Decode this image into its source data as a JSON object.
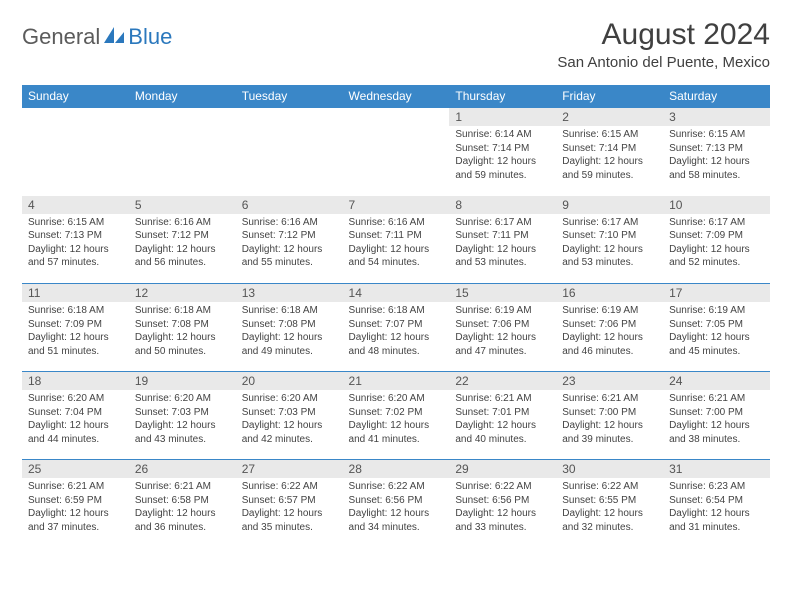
{
  "logo": {
    "part1": "General",
    "part2": "Blue"
  },
  "title": "August 2024",
  "location": "San Antonio del Puente, Mexico",
  "colors": {
    "header_bg": "#3a87c8",
    "header_fg": "#ffffff",
    "daynum_bg": "#e9e9e9",
    "divider": "#3a87c8",
    "logo_gray": "#5b5b5b",
    "logo_blue": "#2b78bd"
  },
  "day_headers": [
    "Sunday",
    "Monday",
    "Tuesday",
    "Wednesday",
    "Thursday",
    "Friday",
    "Saturday"
  ],
  "weeks": [
    [
      {
        "day": "",
        "sunrise": "",
        "sunset": "",
        "daylight": ""
      },
      {
        "day": "",
        "sunrise": "",
        "sunset": "",
        "daylight": ""
      },
      {
        "day": "",
        "sunrise": "",
        "sunset": "",
        "daylight": ""
      },
      {
        "day": "",
        "sunrise": "",
        "sunset": "",
        "daylight": ""
      },
      {
        "day": "1",
        "sunrise": "Sunrise: 6:14 AM",
        "sunset": "Sunset: 7:14 PM",
        "daylight": "Daylight: 12 hours and 59 minutes."
      },
      {
        "day": "2",
        "sunrise": "Sunrise: 6:15 AM",
        "sunset": "Sunset: 7:14 PM",
        "daylight": "Daylight: 12 hours and 59 minutes."
      },
      {
        "day": "3",
        "sunrise": "Sunrise: 6:15 AM",
        "sunset": "Sunset: 7:13 PM",
        "daylight": "Daylight: 12 hours and 58 minutes."
      }
    ],
    [
      {
        "day": "4",
        "sunrise": "Sunrise: 6:15 AM",
        "sunset": "Sunset: 7:13 PM",
        "daylight": "Daylight: 12 hours and 57 minutes."
      },
      {
        "day": "5",
        "sunrise": "Sunrise: 6:16 AM",
        "sunset": "Sunset: 7:12 PM",
        "daylight": "Daylight: 12 hours and 56 minutes."
      },
      {
        "day": "6",
        "sunrise": "Sunrise: 6:16 AM",
        "sunset": "Sunset: 7:12 PM",
        "daylight": "Daylight: 12 hours and 55 minutes."
      },
      {
        "day": "7",
        "sunrise": "Sunrise: 6:16 AM",
        "sunset": "Sunset: 7:11 PM",
        "daylight": "Daylight: 12 hours and 54 minutes."
      },
      {
        "day": "8",
        "sunrise": "Sunrise: 6:17 AM",
        "sunset": "Sunset: 7:11 PM",
        "daylight": "Daylight: 12 hours and 53 minutes."
      },
      {
        "day": "9",
        "sunrise": "Sunrise: 6:17 AM",
        "sunset": "Sunset: 7:10 PM",
        "daylight": "Daylight: 12 hours and 53 minutes."
      },
      {
        "day": "10",
        "sunrise": "Sunrise: 6:17 AM",
        "sunset": "Sunset: 7:09 PM",
        "daylight": "Daylight: 12 hours and 52 minutes."
      }
    ],
    [
      {
        "day": "11",
        "sunrise": "Sunrise: 6:18 AM",
        "sunset": "Sunset: 7:09 PM",
        "daylight": "Daylight: 12 hours and 51 minutes."
      },
      {
        "day": "12",
        "sunrise": "Sunrise: 6:18 AM",
        "sunset": "Sunset: 7:08 PM",
        "daylight": "Daylight: 12 hours and 50 minutes."
      },
      {
        "day": "13",
        "sunrise": "Sunrise: 6:18 AM",
        "sunset": "Sunset: 7:08 PM",
        "daylight": "Daylight: 12 hours and 49 minutes."
      },
      {
        "day": "14",
        "sunrise": "Sunrise: 6:18 AM",
        "sunset": "Sunset: 7:07 PM",
        "daylight": "Daylight: 12 hours and 48 minutes."
      },
      {
        "day": "15",
        "sunrise": "Sunrise: 6:19 AM",
        "sunset": "Sunset: 7:06 PM",
        "daylight": "Daylight: 12 hours and 47 minutes."
      },
      {
        "day": "16",
        "sunrise": "Sunrise: 6:19 AM",
        "sunset": "Sunset: 7:06 PM",
        "daylight": "Daylight: 12 hours and 46 minutes."
      },
      {
        "day": "17",
        "sunrise": "Sunrise: 6:19 AM",
        "sunset": "Sunset: 7:05 PM",
        "daylight": "Daylight: 12 hours and 45 minutes."
      }
    ],
    [
      {
        "day": "18",
        "sunrise": "Sunrise: 6:20 AM",
        "sunset": "Sunset: 7:04 PM",
        "daylight": "Daylight: 12 hours and 44 minutes."
      },
      {
        "day": "19",
        "sunrise": "Sunrise: 6:20 AM",
        "sunset": "Sunset: 7:03 PM",
        "daylight": "Daylight: 12 hours and 43 minutes."
      },
      {
        "day": "20",
        "sunrise": "Sunrise: 6:20 AM",
        "sunset": "Sunset: 7:03 PM",
        "daylight": "Daylight: 12 hours and 42 minutes."
      },
      {
        "day": "21",
        "sunrise": "Sunrise: 6:20 AM",
        "sunset": "Sunset: 7:02 PM",
        "daylight": "Daylight: 12 hours and 41 minutes."
      },
      {
        "day": "22",
        "sunrise": "Sunrise: 6:21 AM",
        "sunset": "Sunset: 7:01 PM",
        "daylight": "Daylight: 12 hours and 40 minutes."
      },
      {
        "day": "23",
        "sunrise": "Sunrise: 6:21 AM",
        "sunset": "Sunset: 7:00 PM",
        "daylight": "Daylight: 12 hours and 39 minutes."
      },
      {
        "day": "24",
        "sunrise": "Sunrise: 6:21 AM",
        "sunset": "Sunset: 7:00 PM",
        "daylight": "Daylight: 12 hours and 38 minutes."
      }
    ],
    [
      {
        "day": "25",
        "sunrise": "Sunrise: 6:21 AM",
        "sunset": "Sunset: 6:59 PM",
        "daylight": "Daylight: 12 hours and 37 minutes."
      },
      {
        "day": "26",
        "sunrise": "Sunrise: 6:21 AM",
        "sunset": "Sunset: 6:58 PM",
        "daylight": "Daylight: 12 hours and 36 minutes."
      },
      {
        "day": "27",
        "sunrise": "Sunrise: 6:22 AM",
        "sunset": "Sunset: 6:57 PM",
        "daylight": "Daylight: 12 hours and 35 minutes."
      },
      {
        "day": "28",
        "sunrise": "Sunrise: 6:22 AM",
        "sunset": "Sunset: 6:56 PM",
        "daylight": "Daylight: 12 hours and 34 minutes."
      },
      {
        "day": "29",
        "sunrise": "Sunrise: 6:22 AM",
        "sunset": "Sunset: 6:56 PM",
        "daylight": "Daylight: 12 hours and 33 minutes."
      },
      {
        "day": "30",
        "sunrise": "Sunrise: 6:22 AM",
        "sunset": "Sunset: 6:55 PM",
        "daylight": "Daylight: 12 hours and 32 minutes."
      },
      {
        "day": "31",
        "sunrise": "Sunrise: 6:23 AM",
        "sunset": "Sunset: 6:54 PM",
        "daylight": "Daylight: 12 hours and 31 minutes."
      }
    ]
  ]
}
